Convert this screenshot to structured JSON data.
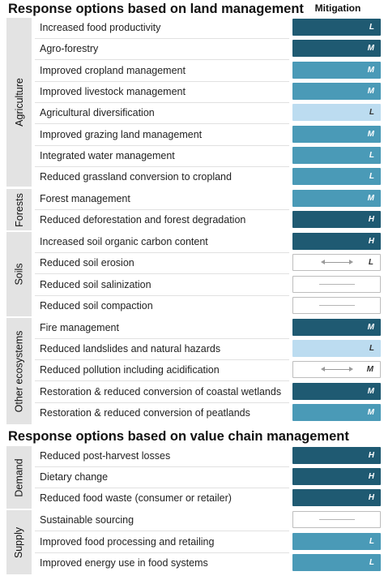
{
  "colors": {
    "very_high": "#1f5a72",
    "high": "#4a9ab7",
    "moderate": "#bcdcf0",
    "none": "#ffffff",
    "group_bar": "#e3e3e3"
  },
  "header": {
    "title_land": "Response options based on land management",
    "mitigation_label": "Mitigation",
    "title_value": "Response options based on value chain management"
  },
  "groups": [
    {
      "label": "Agriculture"
    },
    {
      "label": "Forests"
    },
    {
      "label": "Soils"
    },
    {
      "label": "Other ecosystems"
    },
    {
      "label": "Demand"
    },
    {
      "label": "Supply"
    }
  ],
  "rows": [
    {
      "label": "Increased food productivity",
      "level": "very_high",
      "confidence": "L"
    },
    {
      "label": "Agro-forestry",
      "level": "very_high",
      "confidence": "M"
    },
    {
      "label": "Improved cropland management",
      "level": "high",
      "confidence": "M"
    },
    {
      "label": "Improved livestock management",
      "level": "high",
      "confidence": "M"
    },
    {
      "label": "Agricultural diversification",
      "level": "moderate",
      "confidence": "L"
    },
    {
      "label": "Improved grazing land management",
      "level": "high",
      "confidence": "M"
    },
    {
      "label": "Integrated water management",
      "level": "high",
      "confidence": "L"
    },
    {
      "label": "Reduced grassland conversion to cropland",
      "level": "high",
      "confidence": "L"
    },
    {
      "label": "Forest management",
      "level": "high",
      "confidence": "M"
    },
    {
      "label": "Reduced deforestation and forest degradation",
      "level": "very_high",
      "confidence": "H"
    },
    {
      "label": "Increased soil organic carbon content",
      "level": "very_high",
      "confidence": "H"
    },
    {
      "label": "Reduced soil erosion",
      "level": "none",
      "confidence": "L",
      "mark": "arrow"
    },
    {
      "label": "Reduced soil salinization",
      "level": "none",
      "confidence": "",
      "mark": "dash"
    },
    {
      "label": "Reduced soil compaction",
      "level": "none",
      "confidence": "",
      "mark": "dash"
    },
    {
      "label": "Fire management",
      "level": "very_high",
      "confidence": "M"
    },
    {
      "label": "Reduced landslides and natural hazards",
      "level": "moderate",
      "confidence": "L"
    },
    {
      "label": "Reduced pollution including acidification",
      "level": "none",
      "confidence": "M",
      "mark": "arrow"
    },
    {
      "label": "Restoration & reduced conversion of coastal wetlands",
      "level": "very_high",
      "confidence": "M"
    },
    {
      "label": "Restoration & reduced conversion of peatlands",
      "level": "high",
      "confidence": "M"
    },
    {
      "label": "Reduced post-harvest losses",
      "level": "very_high",
      "confidence": "H"
    },
    {
      "label": "Dietary change",
      "level": "very_high",
      "confidence": "H"
    },
    {
      "label": "Reduced food waste (consumer or retailer)",
      "level": "very_high",
      "confidence": "H"
    },
    {
      "label": "Sustainable sourcing",
      "level": "none",
      "confidence": "",
      "mark": "dash"
    },
    {
      "label": "Improved food processing and retailing",
      "level": "high",
      "confidence": "L"
    },
    {
      "label": "Improved energy use in food systems",
      "level": "high",
      "confidence": "L"
    }
  ]
}
